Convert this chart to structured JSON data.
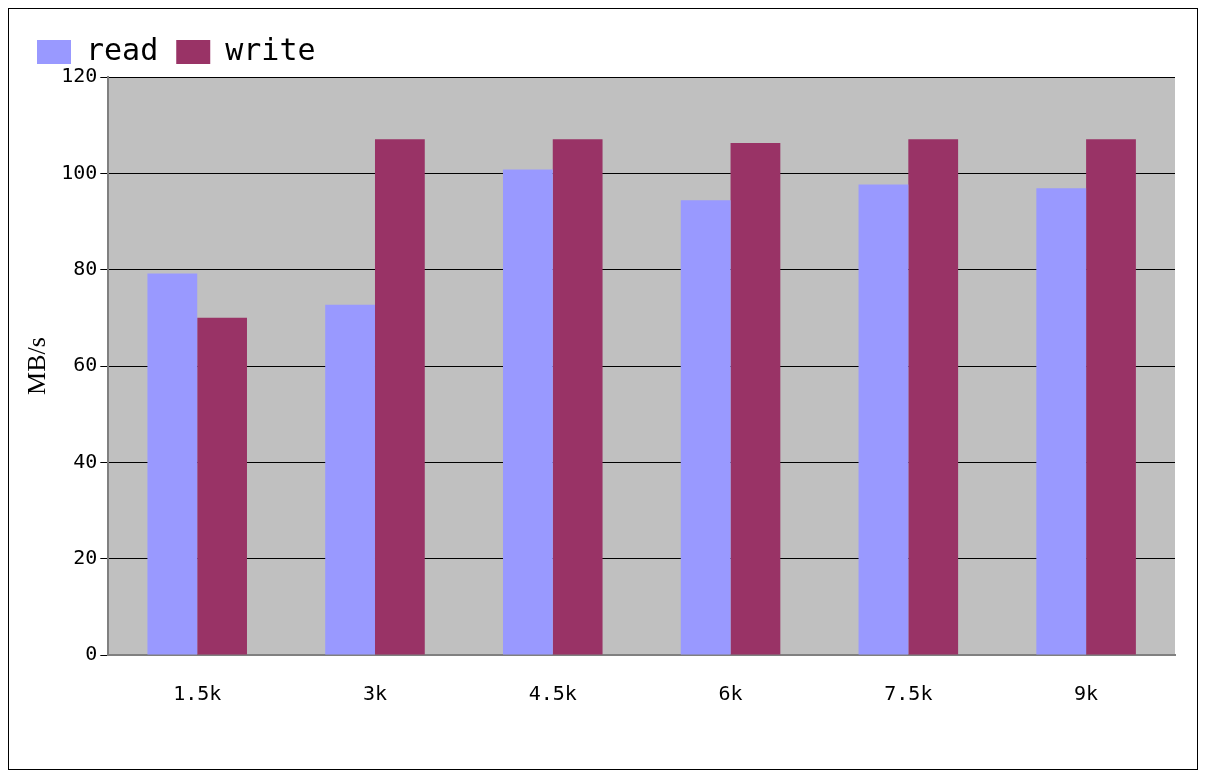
{
  "chart_data": {
    "type": "bar",
    "ylabel": "MB/s",
    "categories": [
      "1.5k",
      "3k",
      "4.5k",
      "6k",
      "7.5k",
      "9k"
    ],
    "series": [
      {
        "name": "read",
        "color": "#9999ff",
        "values": [
          79.2,
          72.7,
          100.8,
          94.4,
          97.7,
          96.9
        ]
      },
      {
        "name": "write",
        "color": "#993366",
        "values": [
          70,
          107.1,
          107.1,
          106.3,
          107.1,
          107.1
        ]
      }
    ],
    "ylim": [
      0,
      120
    ],
    "yticks": [
      0,
      20,
      40,
      60,
      80,
      100,
      120
    ],
    "grid": "y",
    "legend": "top left"
  }
}
